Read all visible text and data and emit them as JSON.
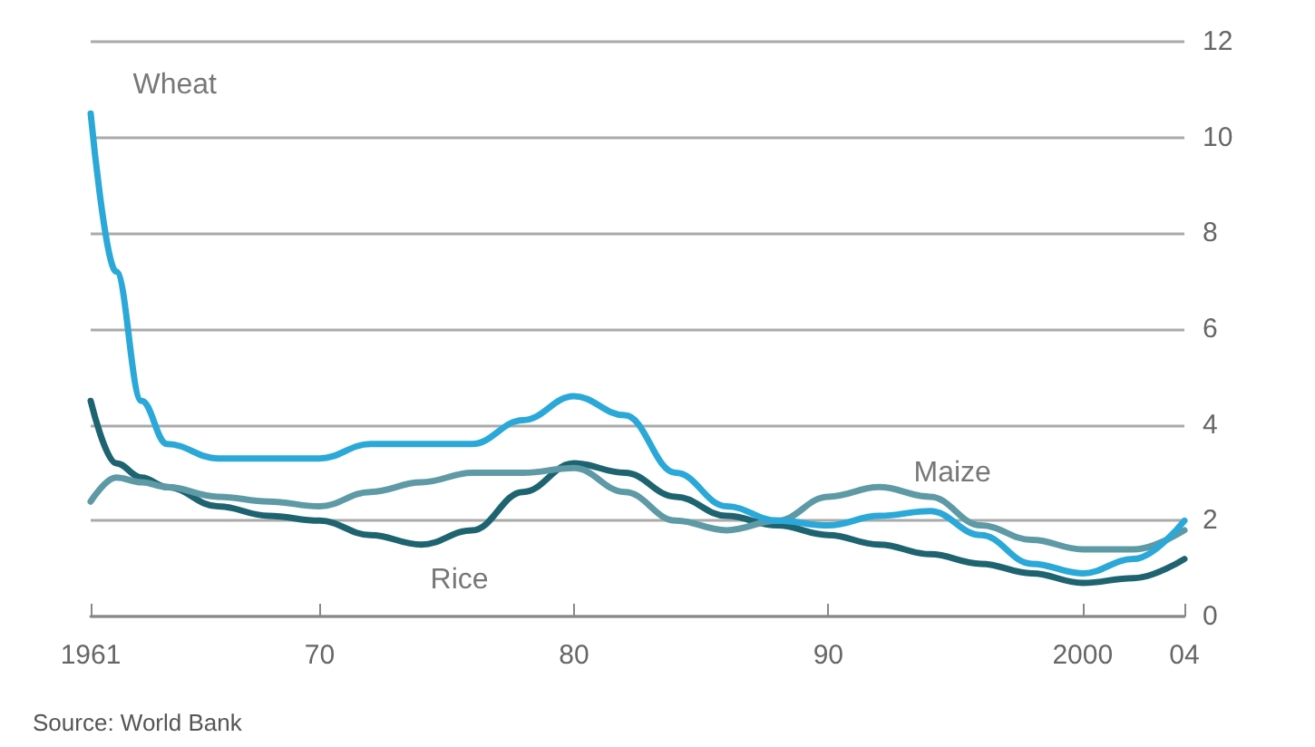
{
  "chart_data": {
    "type": "line",
    "annotations": [
      "Source: World Bank"
    ],
    "xlim": [
      1961,
      2004
    ],
    "xticks": [
      {
        "value": 1961,
        "label": "1961"
      },
      {
        "value": 1970,
        "label": "70"
      },
      {
        "value": 1980,
        "label": "80"
      },
      {
        "value": 1990,
        "label": "90"
      },
      {
        "value": 2000,
        "label": "2000"
      },
      {
        "value": 2004,
        "label": "04"
      }
    ],
    "ylim": [
      0,
      12
    ],
    "yticks": [
      0,
      2,
      4,
      6,
      8,
      10,
      12
    ],
    "grid": "y",
    "legend": false,
    "marker": "none",
    "line_style": "solid",
    "x": [
      1961,
      1962,
      1963,
      1964,
      1966,
      1968,
      1970,
      1972,
      1974,
      1976,
      1978,
      1980,
      1982,
      1984,
      1986,
      1988,
      1990,
      1992,
      1994,
      1996,
      1998,
      2000,
      2002,
      2004
    ],
    "series": [
      {
        "name": "Wheat",
        "color": "#2aa8d8",
        "values": [
          10.5,
          7.2,
          4.5,
          3.6,
          3.3,
          3.3,
          3.3,
          3.6,
          3.6,
          3.6,
          4.1,
          4.6,
          4.2,
          3.0,
          2.3,
          2.0,
          1.9,
          2.1,
          2.2,
          1.7,
          1.1,
          0.9,
          1.2,
          2.0
        ]
      },
      {
        "name": "Maize",
        "color": "#5d9aa6",
        "values": [
          2.4,
          2.9,
          2.8,
          2.7,
          2.5,
          2.4,
          2.3,
          2.6,
          2.8,
          3.0,
          3.0,
          3.1,
          2.6,
          2.0,
          1.8,
          2.0,
          2.5,
          2.7,
          2.5,
          1.9,
          1.6,
          1.4,
          1.4,
          1.8
        ]
      },
      {
        "name": "Rice",
        "color": "#1e6470",
        "values": [
          4.5,
          3.2,
          2.9,
          2.7,
          2.3,
          2.1,
          2.0,
          1.7,
          1.5,
          1.8,
          2.6,
          3.2,
          3.0,
          2.5,
          2.1,
          1.9,
          1.7,
          1.5,
          1.3,
          1.1,
          0.9,
          0.7,
          0.8,
          1.2
        ]
      }
    ]
  }
}
